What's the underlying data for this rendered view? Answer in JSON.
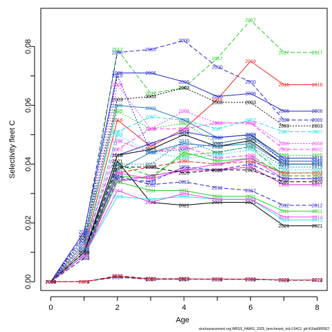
{
  "chart_data": {
    "type": "line",
    "xlabel": "Age",
    "ylabel": "Selectivity fleet C",
    "xlim": [
      -0.3,
      8.3
    ],
    "ylim": [
      -0.003,
      0.093
    ],
    "x_ticks": [
      "0",
      "2",
      "4",
      "6",
      "8"
    ],
    "y_ticks": [
      "0.00",
      "0.02",
      "0.04",
      "0.06",
      "0.08"
    ],
    "footnote": "stockassessment.org,WBSS_HAWG_2025_benchmark_init,r19412, git:416ad5f0f062",
    "x": [
      0,
      1,
      2,
      3,
      4,
      5,
      6,
      7,
      8
    ],
    "series": [
      {
        "name": "2017",
        "color": "#22cc22",
        "dash": "6,3",
        "values": [
          0.0,
          0.012,
          0.079,
          0.064,
          0.066,
          0.076,
          0.089,
          0.078,
          0.078
        ]
      },
      {
        "name": "2016",
        "color": "#ee2222",
        "dash": "",
        "values": [
          0.0,
          0.011,
          0.055,
          0.046,
          0.052,
          0.062,
          0.075,
          0.067,
          0.067
        ]
      },
      {
        "name": "2006",
        "color": "#2222cc",
        "dash": "",
        "values": [
          0.0,
          0.017,
          0.071,
          0.071,
          0.068,
          0.063,
          0.064,
          0.058,
          0.058
        ]
      },
      {
        "name": "2000",
        "color": "#2222cc",
        "dash": "6,3",
        "values": [
          0.0,
          0.016,
          0.078,
          0.079,
          0.082,
          0.073,
          0.068,
          0.055,
          0.055
        ]
      },
      {
        "name": "2003",
        "color": "#000000",
        "dash": "2,2",
        "values": [
          0.0,
          0.015,
          0.062,
          0.063,
          0.066,
          0.061,
          0.061,
          0.053,
          0.053
        ]
      },
      {
        "name": "2005",
        "color": "#22cc22",
        "dash": "2,2",
        "values": [
          0.0,
          0.012,
          0.058,
          0.052,
          0.054,
          0.047,
          0.049,
          0.043,
          0.043
        ]
      },
      {
        "name": "2007",
        "color": "#22dddd",
        "dash": "6,3",
        "values": [
          0.0,
          0.01,
          0.051,
          0.056,
          0.055,
          0.052,
          0.055,
          0.051,
          0.051
        ]
      },
      {
        "name": "2008",
        "color": "#ee44ee",
        "dash": "2,2",
        "values": [
          0.0,
          0.011,
          0.067,
          0.052,
          0.058,
          0.054,
          0.054,
          0.047,
          0.047
        ]
      },
      {
        "name": "2009",
        "color": "#1f78b4",
        "dash": "",
        "values": [
          0.0,
          0.013,
          0.06,
          0.059,
          0.055,
          0.049,
          0.05,
          0.041,
          0.041
        ]
      },
      {
        "name": "2010",
        "color": "#2222cc",
        "dash": "2,2",
        "values": [
          0.0,
          0.014,
          0.07,
          0.044,
          0.045,
          0.047,
          0.049,
          0.041,
          0.041
        ]
      },
      {
        "name": "2002",
        "color": "#ee44ee",
        "dash": "6,3",
        "values": [
          0.0,
          0.012,
          0.045,
          0.052,
          0.052,
          0.054,
          0.054,
          0.045,
          0.045
        ]
      },
      {
        "name": "2018",
        "color": "#2222cc",
        "dash": "",
        "values": [
          0.0,
          0.01,
          0.043,
          0.047,
          0.051,
          0.049,
          0.05,
          0.042,
          0.042
        ]
      },
      {
        "name": "2015",
        "color": "#000000",
        "dash": "",
        "values": [
          0.0,
          0.01,
          0.043,
          0.045,
          0.05,
          0.046,
          0.048,
          0.04,
          0.04
        ]
      },
      {
        "name": "1998",
        "color": "#ee44ee",
        "dash": "6,3",
        "values": [
          0.0,
          0.01,
          0.048,
          0.044,
          0.046,
          0.042,
          0.043,
          0.036,
          0.036
        ]
      },
      {
        "name": "1999",
        "color": "#22dddd",
        "dash": "2,2",
        "values": [
          0.0,
          0.011,
          0.05,
          0.044,
          0.042,
          0.043,
          0.045,
          0.038,
          0.038
        ]
      },
      {
        "name": "1997",
        "color": "#22cc22",
        "dash": "",
        "values": [
          0.0,
          0.009,
          0.036,
          0.035,
          0.044,
          0.041,
          0.042,
          0.037,
          0.037
        ]
      },
      {
        "name": "1992",
        "color": "#1f78b4",
        "dash": "",
        "values": [
          0.0,
          0.009,
          0.038,
          0.044,
          0.047,
          0.046,
          0.047,
          0.04,
          0.04
        ]
      },
      {
        "name": "1994",
        "color": "#ee2222",
        "dash": "6,3",
        "values": [
          0.0,
          0.008,
          0.037,
          0.039,
          0.041,
          0.04,
          0.041,
          0.037,
          0.037
        ]
      },
      {
        "name": "1995",
        "color": "#22cc22",
        "dash": "6,3",
        "values": [
          0.0,
          0.009,
          0.04,
          0.036,
          0.043,
          0.044,
          0.046,
          0.036,
          0.036
        ]
      },
      {
        "name": "1996",
        "color": "#ee44ee",
        "dash": "",
        "values": [
          0.0,
          0.009,
          0.037,
          0.035,
          0.038,
          0.04,
          0.042,
          0.035,
          0.035
        ]
      },
      {
        "name": "1993",
        "color": "#2222cc",
        "dash": "6,3",
        "values": [
          0.0,
          0.008,
          0.035,
          0.034,
          0.039,
          0.038,
          0.04,
          0.035,
          0.035
        ]
      },
      {
        "name": "1991",
        "color": "#cc22cc",
        "dash": "",
        "values": [
          0.0,
          0.009,
          0.034,
          0.036,
          0.038,
          0.038,
          0.039,
          0.033,
          0.033
        ]
      },
      {
        "name": "2021",
        "color": "#000000",
        "dash": "",
        "values": [
          0.0,
          0.01,
          0.041,
          0.027,
          0.026,
          0.027,
          0.027,
          0.019,
          0.019
        ]
      },
      {
        "name": "2012",
        "color": "#2222cc",
        "dash": "6,3",
        "values": [
          0.0,
          0.01,
          0.036,
          0.033,
          0.034,
          0.032,
          0.031,
          0.026,
          0.026
        ]
      },
      {
        "name": "2011",
        "color": "#22cc22",
        "dash": "",
        "values": [
          0.0,
          0.01,
          0.034,
          0.031,
          0.031,
          0.029,
          0.029,
          0.024,
          0.024
        ]
      },
      {
        "name": "2013",
        "color": "#22dddd",
        "dash": "",
        "values": [
          0.0,
          0.009,
          0.029,
          0.028,
          0.029,
          0.028,
          0.028,
          0.021,
          0.021
        ]
      },
      {
        "name": "2014",
        "color": "#ee44ee",
        "dash": "",
        "values": [
          0.0,
          0.009,
          0.031,
          0.027,
          0.03,
          0.028,
          0.028,
          0.022,
          0.022
        ]
      },
      {
        "name": "2019",
        "color": "#1f78b4",
        "dash": "2,2",
        "values": [
          0.0,
          0.011,
          0.04,
          0.04,
          0.048,
          0.044,
          0.046,
          0.039,
          0.039
        ]
      },
      {
        "name": "2020",
        "color": "#000000",
        "dash": "6,3",
        "values": [
          0.0,
          0.01,
          0.039,
          0.039,
          0.037,
          0.038,
          0.038,
          0.034,
          0.034
        ]
      },
      {
        "name": "2022",
        "color": "#000000",
        "dash": "6,3",
        "values": [
          0.0,
          0.0,
          0.002,
          0.001,
          0.001,
          0.0008,
          0.0008,
          0.0005,
          0.0005
        ]
      },
      {
        "name": "2024",
        "color": "#2222cc",
        "dash": "6,3",
        "values": [
          0.0,
          0.0,
          0.0015,
          0.0008,
          0.0008,
          0.0008,
          0.0008,
          0.0005,
          0.0005
        ]
      },
      {
        "name": "2023",
        "color": "#ee2222",
        "dash": "",
        "values": [
          0.0,
          0.0,
          0.0018,
          0.0009,
          0.0009,
          0.0009,
          0.0009,
          0.0006,
          0.0006
        ]
      }
    ]
  }
}
